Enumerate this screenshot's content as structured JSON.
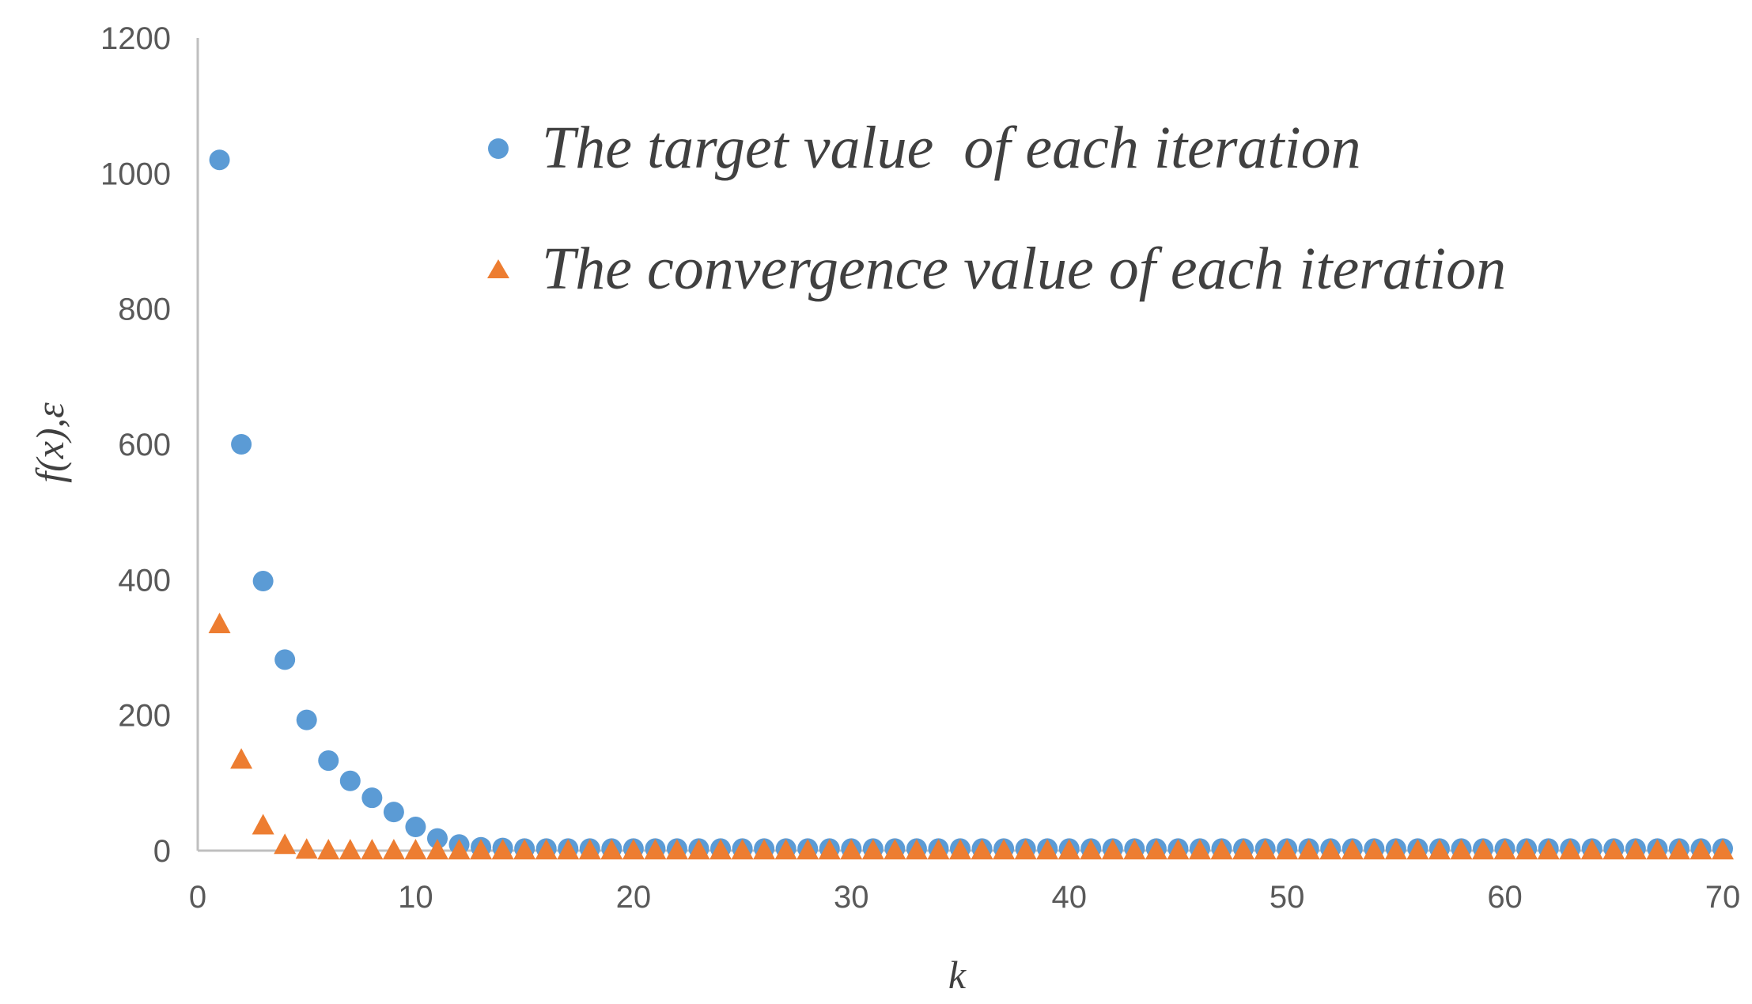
{
  "chart_data": {
    "type": "scatter",
    "xlabel": "k",
    "ylabel": "f(x),ε",
    "xlim": [
      0,
      70
    ],
    "ylim": [
      0,
      1200
    ],
    "xticks": [
      0,
      10,
      20,
      30,
      40,
      50,
      60,
      70
    ],
    "yticks": [
      0,
      200,
      400,
      600,
      800,
      1000,
      1200
    ],
    "grid": false,
    "legend_position": "top-right",
    "series": [
      {
        "name": "The target value  of each iteration",
        "marker": "circle",
        "color": "#5B9BD5",
        "x": [
          1,
          2,
          3,
          4,
          5,
          6,
          7,
          8,
          9,
          10,
          11,
          12,
          13,
          14,
          15,
          16,
          17,
          18,
          19,
          20,
          21,
          22,
          23,
          24,
          25,
          26,
          27,
          28,
          29,
          30,
          31,
          32,
          33,
          34,
          35,
          36,
          37,
          38,
          39,
          40,
          41,
          42,
          43,
          44,
          45,
          46,
          47,
          48,
          49,
          50,
          51,
          52,
          53,
          54,
          55,
          56,
          57,
          58,
          59,
          60,
          61,
          62,
          63,
          64,
          65,
          66,
          67,
          68,
          69,
          70
        ],
        "values": [
          1020,
          600,
          398,
          282,
          193,
          133,
          103,
          78,
          57,
          35,
          18,
          9,
          5,
          4,
          3,
          3,
          3,
          3,
          3,
          3,
          3,
          3,
          3,
          3,
          3,
          3,
          3,
          3,
          3,
          3,
          3,
          3,
          3,
          3,
          3,
          3,
          3,
          3,
          3,
          3,
          3,
          3,
          3,
          3,
          3,
          3,
          3,
          3,
          3,
          3,
          3,
          3,
          3,
          3,
          3,
          3,
          3,
          3,
          3,
          3,
          3,
          3,
          3,
          3,
          3,
          3,
          3,
          3,
          3,
          3
        ]
      },
      {
        "name": "The convergence value of each iteration",
        "marker": "triangle",
        "color": "#ED7D31",
        "x": [
          1,
          2,
          3,
          4,
          5,
          6,
          7,
          8,
          9,
          10,
          11,
          12,
          13,
          14,
          15,
          16,
          17,
          18,
          19,
          20,
          21,
          22,
          23,
          24,
          25,
          26,
          27,
          28,
          29,
          30,
          31,
          32,
          33,
          34,
          35,
          36,
          37,
          38,
          39,
          40,
          41,
          42,
          43,
          44,
          45,
          46,
          47,
          48,
          49,
          50,
          51,
          52,
          53,
          54,
          55,
          56,
          57,
          58,
          59,
          60,
          61,
          62,
          63,
          64,
          65,
          66,
          67,
          68,
          69,
          70
        ],
        "values": [
          335,
          135,
          38,
          9,
          2,
          1,
          1,
          1,
          1,
          1,
          1,
          1,
          1,
          1,
          1,
          1,
          1,
          1,
          1,
          1,
          1,
          1,
          1,
          1,
          1,
          1,
          1,
          1,
          1,
          1,
          1,
          1,
          1,
          1,
          1,
          1,
          1,
          1,
          1,
          1,
          1,
          1,
          1,
          1,
          1,
          1,
          1,
          1,
          1,
          1,
          1,
          1,
          1,
          1,
          1,
          1,
          1,
          1,
          1,
          1,
          1,
          1,
          1,
          1,
          1,
          1,
          1,
          1,
          1,
          1
        ]
      }
    ]
  }
}
